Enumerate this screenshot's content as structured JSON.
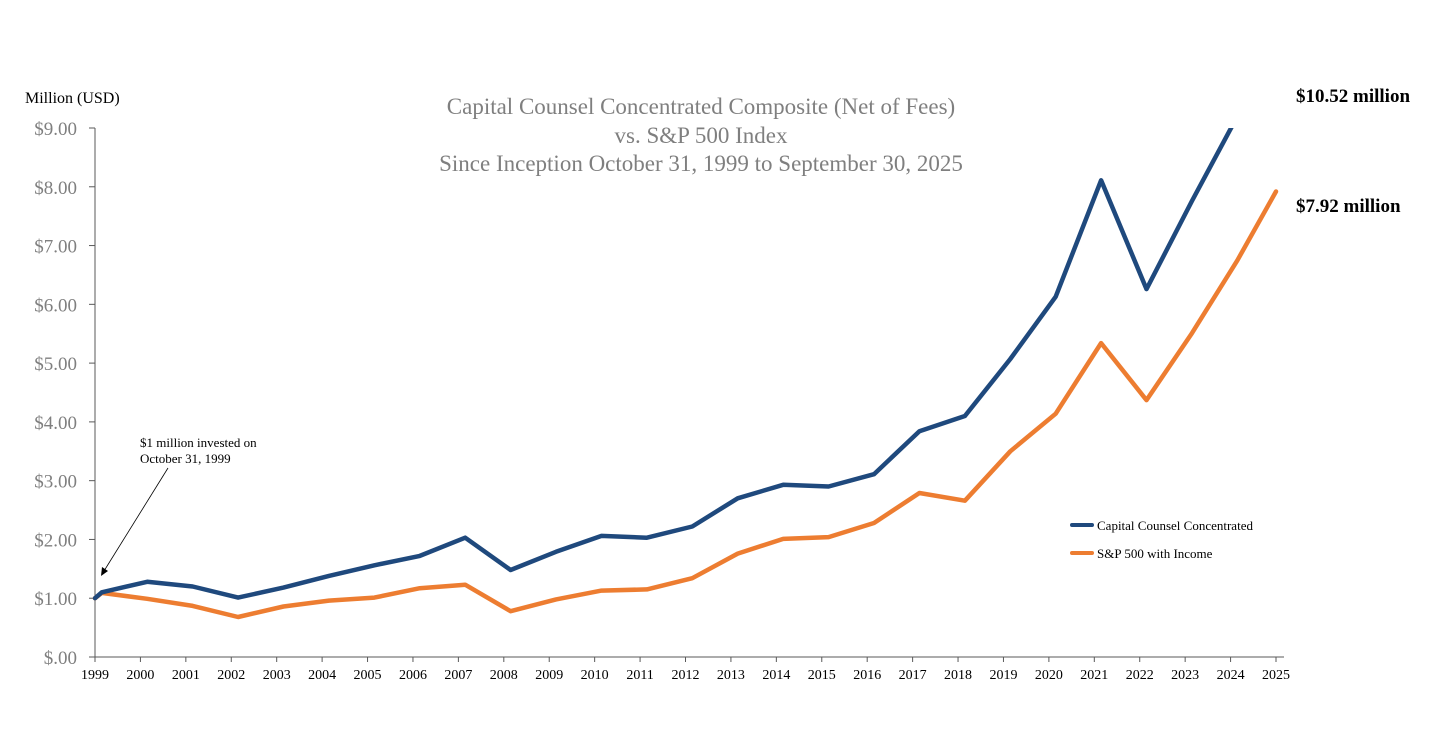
{
  "chart_data": {
    "type": "line",
    "title": "Capital Counsel Concentrated Composite (Net of Fees)",
    "subtitle_lines": [
      "vs. S&P 500 Index",
      "Since Inception October 31, 1999 to September 30, 2025"
    ],
    "ylabel": "Million (USD)",
    "xlabel": "",
    "ylim": [
      0,
      9
    ],
    "yticks": [
      0,
      1,
      2,
      3,
      4,
      5,
      6,
      7,
      8,
      9
    ],
    "ytick_labels": [
      "$.00",
      "$1.00",
      "$2.00",
      "$3.00",
      "$4.00",
      "$5.00",
      "$6.00",
      "$7.00",
      "$8.00",
      "$9.00"
    ],
    "xlim": [
      1999,
      2025
    ],
    "xtick_labels": [
      "1999",
      "2000",
      "2001",
      "2002",
      "2003",
      "2004",
      "2005",
      "2006",
      "2007",
      "2008",
      "2009",
      "2010",
      "2011",
      "2012",
      "2013",
      "2014",
      "2015",
      "2016",
      "2017",
      "2018",
      "2019",
      "2020",
      "2021",
      "2022",
      "2023",
      "2024",
      "2025"
    ],
    "grid": false,
    "legend_position": "bottom-right",
    "x": [
      1999.0,
      1999.15,
      2000.15,
      2001.15,
      2002.15,
      2003.15,
      2004.15,
      2005.15,
      2006.15,
      2007.15,
      2008.15,
      2009.15,
      2010.15,
      2011.15,
      2012.15,
      2013.15,
      2014.15,
      2015.15,
      2016.15,
      2017.15,
      2018.15,
      2019.15,
      2020.15,
      2021.15,
      2022.15,
      2023.15,
      2024.15,
      2025.0
    ],
    "series": [
      {
        "name": "Capital Counsel Concentrated",
        "color": "#1f497d",
        "values": [
          1.0,
          1.1,
          1.28,
          1.2,
          1.01,
          1.18,
          1.38,
          1.56,
          1.72,
          2.03,
          1.48,
          1.79,
          2.06,
          2.03,
          2.22,
          2.7,
          2.93,
          2.9,
          3.11,
          3.84,
          4.1,
          5.07,
          6.13,
          8.11,
          6.26,
          7.76,
          9.2,
          10.52
        ],
        "end_label": "$10.52 million"
      },
      {
        "name": "S&P 500 with Income",
        "color": "#ed7d31",
        "values": [
          1.0,
          1.09,
          0.99,
          0.87,
          0.68,
          0.86,
          0.96,
          1.01,
          1.17,
          1.23,
          0.78,
          0.98,
          1.13,
          1.15,
          1.34,
          1.76,
          2.01,
          2.04,
          2.28,
          2.79,
          2.66,
          3.5,
          4.14,
          5.34,
          4.37,
          5.51,
          6.75,
          7.92
        ],
        "end_label": "$7.92 million"
      }
    ],
    "annotations": [
      {
        "text_lines": [
          "$1 million invested on",
          "October 31, 1999"
        ],
        "points_to": {
          "x": 1999.0,
          "y": 1.0
        }
      }
    ]
  }
}
